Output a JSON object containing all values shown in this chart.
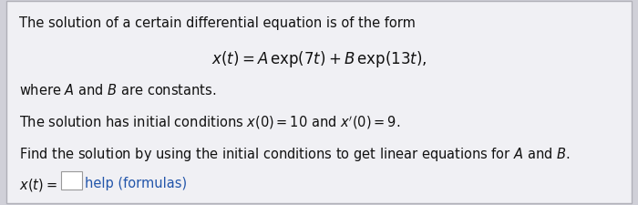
{
  "bg_color": "#d0d0d8",
  "panel_color": "#f0f0f4",
  "border_color": "#b0b0b8",
  "text_color": "#111111",
  "font_size_body": 10.5,
  "font_size_eq": 12.0,
  "figwidth": 7.0,
  "figheight": 2.26,
  "dpi": 100
}
